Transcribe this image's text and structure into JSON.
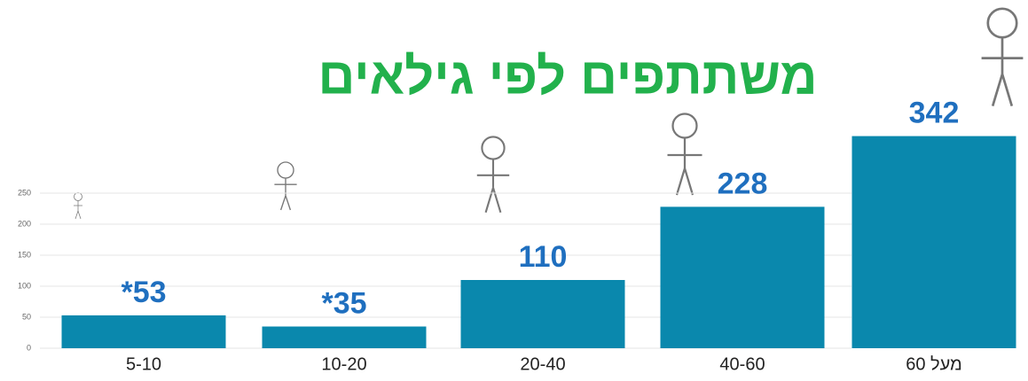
{
  "chart_data": {
    "type": "bar",
    "title": "משתתפים לפי גילאים",
    "categories": [
      "5-10",
      "10-20",
      "20-40",
      "40-60",
      "מעל 60"
    ],
    "values": [
      53,
      35,
      110,
      228,
      342
    ],
    "value_labels": [
      "*53",
      "*35",
      "110",
      "228",
      "342"
    ],
    "color": "#0a88ad",
    "label_color": "#1f6fbf",
    "title_color": "#22b14c",
    "ylim": [
      0,
      350
    ],
    "yticks": [
      0,
      50,
      100,
      150,
      200,
      250
    ],
    "grid": true
  }
}
